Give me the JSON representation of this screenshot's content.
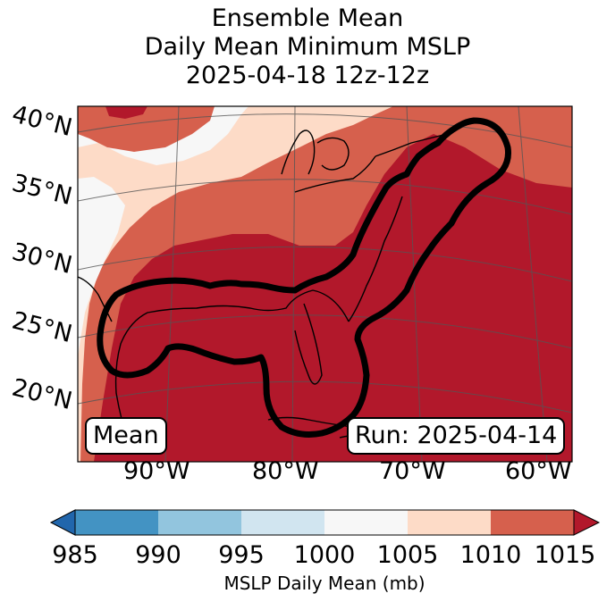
{
  "title": {
    "line1": "Ensemble Mean",
    "line2": "Daily Mean Minimum MSLP",
    "line3": "2025-04-18 12z-12z"
  },
  "map": {
    "lat_labels": [
      "40°N",
      "35°N",
      "30°N",
      "25°N",
      "20°N"
    ],
    "lon_labels": [
      "90°W",
      "80°W",
      "70°W",
      "60°W"
    ],
    "left_box": "Mean",
    "right_box": "Run: 2025-04-14",
    "fill_colors": [
      "#b2182b",
      "#d6604d",
      "#fddbc7",
      "#f7f7f7"
    ]
  },
  "colorbar": {
    "label": "MSLP Daily Mean (mb)",
    "ticks": [
      "985",
      "990",
      "995",
      "1000",
      "1005",
      "1010",
      "1015"
    ],
    "colors": {
      "under": "#2166ac",
      "bins": [
        "#4393c3",
        "#92c5de",
        "#d1e5f0",
        "#f7f7f7",
        "#fddbc7",
        "#d6604d"
      ],
      "over": "#b2182b"
    }
  },
  "chart_data": {
    "type": "heatmap",
    "title": "Ensemble Mean\nDaily Mean Minimum MSLP\n2025-04-18 12z-12z",
    "xlabel": "",
    "ylabel": "",
    "x_ticks": [
      "90°W",
      "80°W",
      "70°W",
      "60°W"
    ],
    "y_ticks": [
      "40°N",
      "35°N",
      "30°N",
      "25°N",
      "20°N"
    ],
    "colorbar": {
      "label": "MSLP Daily Mean (mb)",
      "levels": [
        985,
        990,
        995,
        1000,
        1005,
        1010,
        1015
      ],
      "extend": "both"
    },
    "annotations": [
      "Mean",
      "Run: 2025-04-14"
    ]
  }
}
